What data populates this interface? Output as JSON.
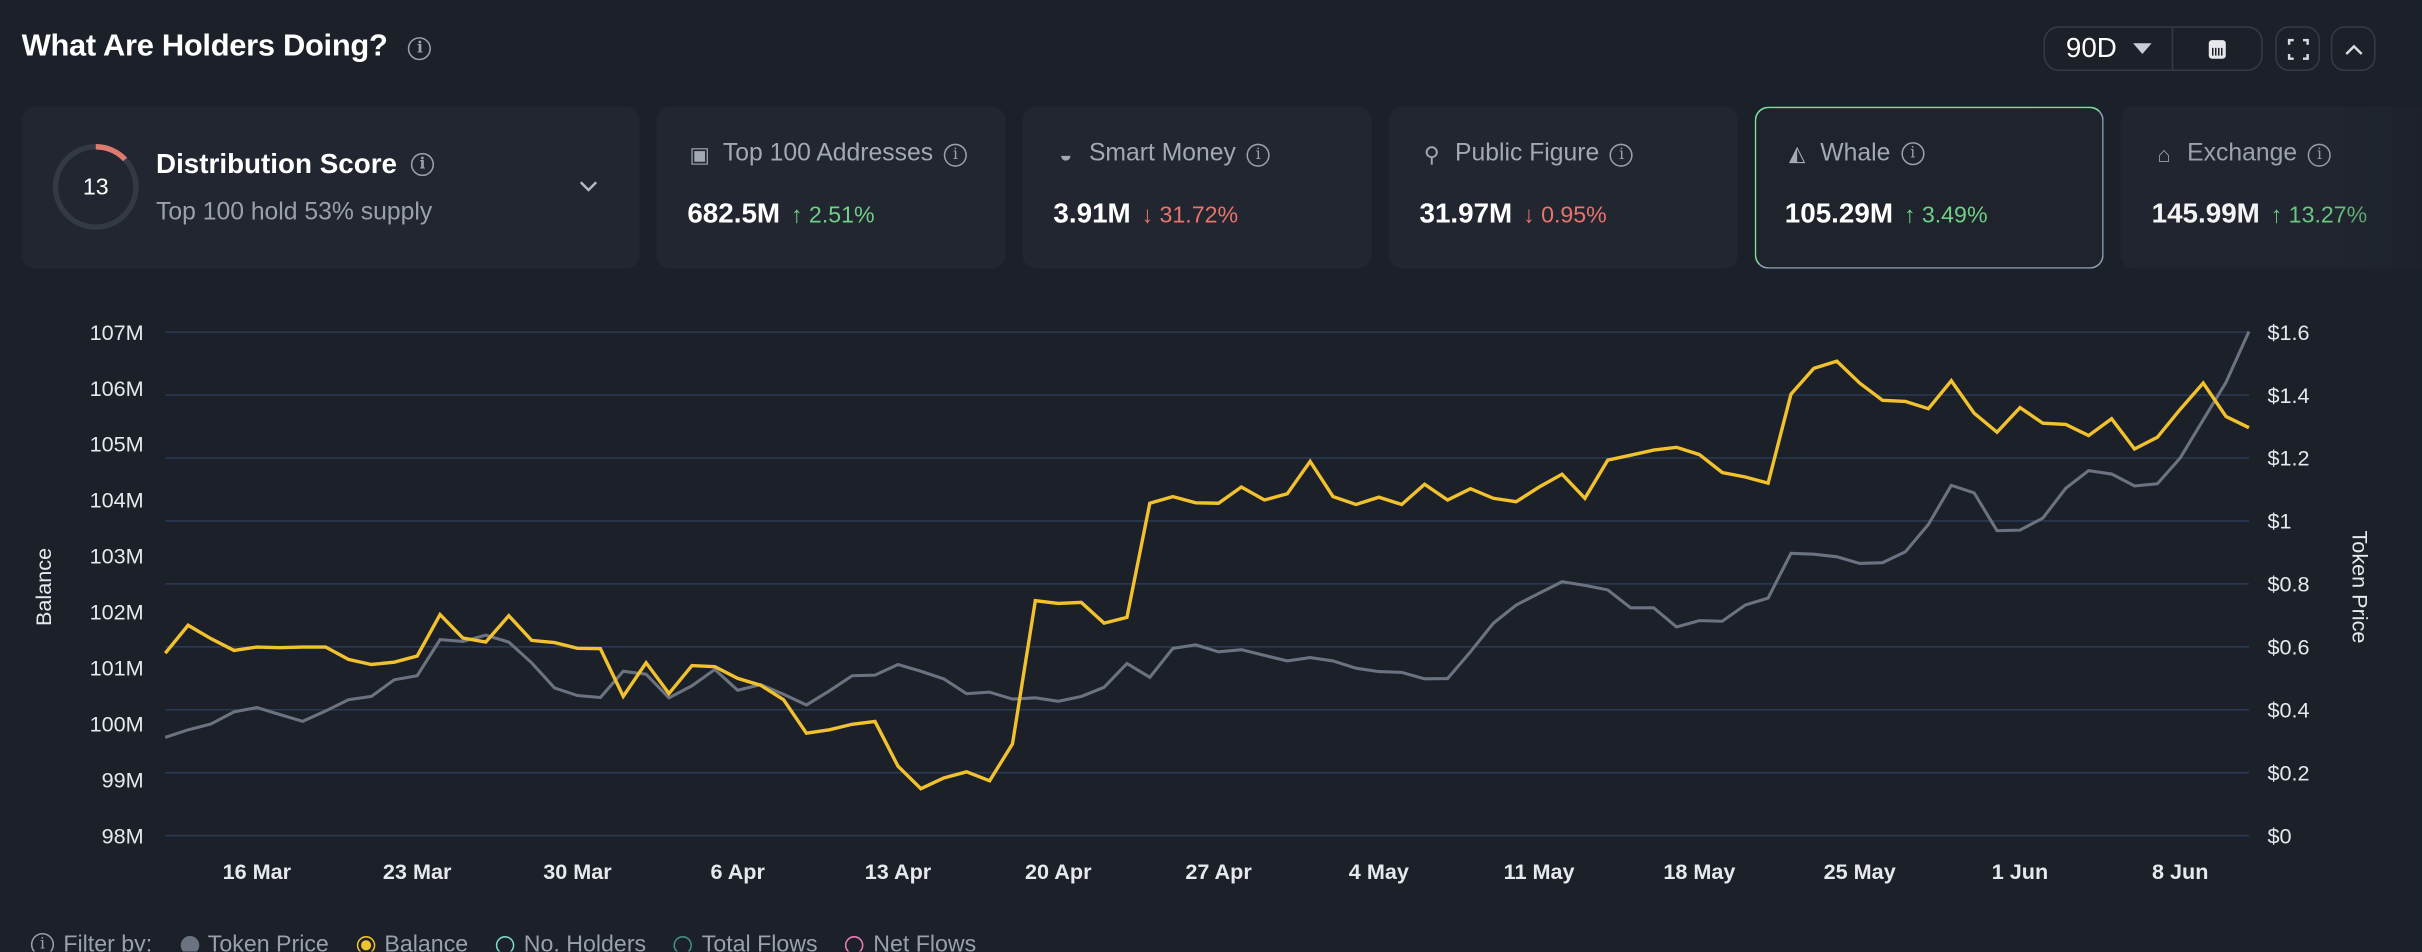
{
  "header": {
    "title": "What Are Holders Doing?",
    "range_selected": "90D",
    "icons": [
      "info-icon",
      "dropdown-triangle-icon",
      "calendar-icon",
      "fullscreen-icon",
      "chevron-up-icon"
    ]
  },
  "distribution": {
    "score": "13",
    "score_fraction": 0.13,
    "label": "Distribution Score",
    "subtitle": "Top 100 hold 53% supply",
    "ring_color": "#e07a6f"
  },
  "cards": [
    {
      "label": "Top 100 Addresses",
      "icon": "money-icon",
      "value": "682.5M",
      "change": "2.51%",
      "direction": "up"
    },
    {
      "label": "Smart Money",
      "icon": "sunglasses-icon",
      "value": "3.91M",
      "change": "31.72%",
      "direction": "down"
    },
    {
      "label": "Public Figure",
      "icon": "public-figure-icon",
      "value": "31.97M",
      "change": "0.95%",
      "direction": "down"
    },
    {
      "label": "Whale",
      "icon": "whale-icon",
      "value": "105.29M",
      "change": "3.49%",
      "direction": "up",
      "selected": true
    },
    {
      "label": "Exchange",
      "icon": "bank-icon",
      "value": "145.99M",
      "change": "13.27%",
      "direction": "up"
    }
  ],
  "colors": {
    "up": "#6fcf86",
    "down": "#e8746b",
    "balance": "#f2c12e",
    "token_price": "#6b7380",
    "grid": "#2a3a55",
    "selected_border": "#7be3a0"
  },
  "legend": {
    "prefix": "Filter by:",
    "items": [
      {
        "label": "Token Price",
        "color": "#6b7380",
        "active": true
      },
      {
        "label": "Balance",
        "color": "#f2c12e",
        "active": true
      },
      {
        "label": "No. Holders",
        "color": "#7fd6c8",
        "active": false
      },
      {
        "label": "Total Flows",
        "color": "#3f8f88",
        "active": false
      },
      {
        "label": "Net Flows",
        "color": "#e97fb8",
        "active": false
      }
    ]
  },
  "chart_data": {
    "type": "line",
    "xlabel": "",
    "ylabel": "Balance",
    "y2label": "Token Price",
    "start_date": "12 Mar",
    "x_ticks": [
      "16 Mar",
      "23 Mar",
      "30 Mar",
      "6 Apr",
      "13 Apr",
      "20 Apr",
      "27 Apr",
      "4 May",
      "11 May",
      "18 May",
      "25 May",
      "1 Jun",
      "8 Jun"
    ],
    "y_ticks": [
      "107M",
      "106M",
      "105M",
      "104M",
      "103M",
      "102M",
      "101M",
      "100M",
      "99M",
      "98M"
    ],
    "y2_ticks": [
      "$1.6",
      "$1.4",
      "$1.2",
      "$1",
      "$0.8",
      "$0.6",
      "$0.4",
      "$0.2",
      "$0"
    ],
    "ylim": [
      98,
      107
    ],
    "y2lim": [
      0,
      1.6
    ],
    "grid": true,
    "series": [
      {
        "name": "Balance",
        "axis": "left",
        "unit": "M",
        "values": [
          101.26,
          101.76,
          101.52,
          101.31,
          101.37,
          101.36,
          101.37,
          101.37,
          101.15,
          101.06,
          101.1,
          101.21,
          101.95,
          101.53,
          101.46,
          101.93,
          101.49,
          101.45,
          101.35,
          101.34,
          100.49,
          101.09,
          100.54,
          101.04,
          101.02,
          100.81,
          100.69,
          100.43,
          99.83,
          99.89,
          99.99,
          100.04,
          99.24,
          98.84,
          99.03,
          99.14,
          98.98,
          99.64,
          102.2,
          102.15,
          102.17,
          101.8,
          101.9,
          103.94,
          104.06,
          103.95,
          103.94,
          104.23,
          104.0,
          104.11,
          104.69,
          104.06,
          103.92,
          104.05,
          103.92,
          104.28,
          104.0,
          104.2,
          104.03,
          103.97,
          104.23,
          104.46,
          104.03,
          104.71,
          104.8,
          104.89,
          104.94,
          104.81,
          104.49,
          104.41,
          104.3,
          105.89,
          106.35,
          106.48,
          106.09,
          105.78,
          105.76,
          105.63,
          106.13,
          105.55,
          105.21,
          105.65,
          105.37,
          105.35,
          105.15,
          105.45,
          104.91,
          105.12,
          105.62,
          106.09,
          105.49,
          105.29
        ]
      },
      {
        "name": "Token Price",
        "axis": "right",
        "unit": "$",
        "values": [
          0.312,
          0.336,
          0.355,
          0.393,
          0.407,
          0.385,
          0.363,
          0.396,
          0.432,
          0.442,
          0.495,
          0.508,
          0.623,
          0.617,
          0.637,
          0.615,
          0.549,
          0.469,
          0.445,
          0.439,
          0.522,
          0.513,
          0.438,
          0.476,
          0.528,
          0.462,
          0.48,
          0.449,
          0.415,
          0.46,
          0.508,
          0.51,
          0.544,
          0.522,
          0.498,
          0.451,
          0.456,
          0.434,
          0.438,
          0.427,
          0.442,
          0.471,
          0.547,
          0.503,
          0.595,
          0.606,
          0.584,
          0.591,
          0.573,
          0.555,
          0.566,
          0.555,
          0.532,
          0.521,
          0.519,
          0.498,
          0.499,
          0.584,
          0.675,
          0.733,
          0.77,
          0.807,
          0.795,
          0.781,
          0.724,
          0.724,
          0.663,
          0.683,
          0.681,
          0.733,
          0.755,
          0.897,
          0.894,
          0.886,
          0.865,
          0.867,
          0.902,
          0.989,
          1.113,
          1.089,
          0.969,
          0.971,
          1.009,
          1.104,
          1.16,
          1.149,
          1.111,
          1.118,
          1.2,
          1.321,
          1.441,
          1.602
        ]
      }
    ]
  }
}
